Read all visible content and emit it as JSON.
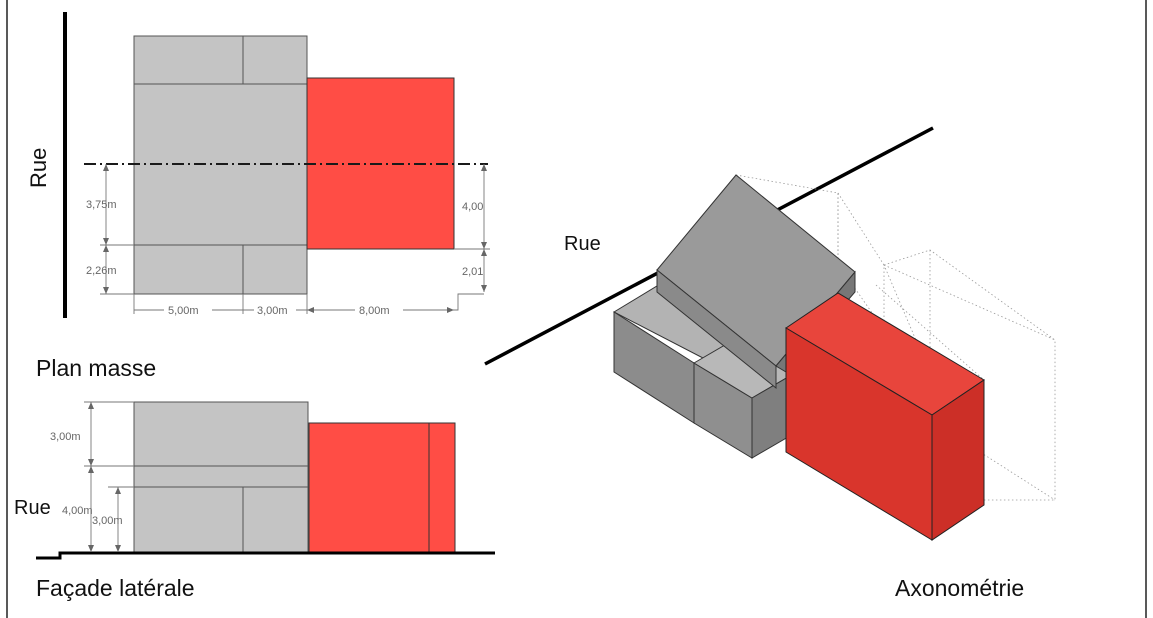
{
  "labels": {
    "rue_plan": "Rue",
    "rue_axo": "Rue",
    "rue_facade": "Rue",
    "plan_masse": "Plan masse",
    "facade_laterale": "Façade latérale",
    "axonometrie": "Axonométrie"
  },
  "plan_dims": {
    "d_375": "3,75m",
    "d_226": "2,26m",
    "d_400": "4,00",
    "d_201": "2,01",
    "d_500": "5,00m",
    "d_300": "3,00m",
    "d_800": "8,00m"
  },
  "facade_dims": {
    "d_300_top": "3,00m",
    "d_400": "4,00m",
    "d_300_low": "3,00m"
  },
  "colors": {
    "existing_grey": "#c4c4c4",
    "extension_red": "#ff4d45",
    "axo_grey_dark": "#8c8c8c",
    "axo_red_dark": "#d9352c"
  }
}
